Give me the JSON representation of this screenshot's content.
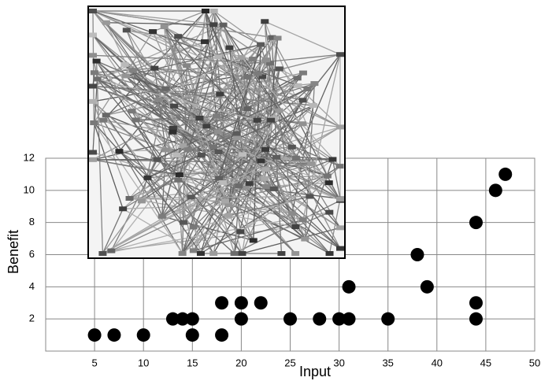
{
  "chart_data": {
    "type": "scatter",
    "x_label": "Input",
    "y_label": "Benefit",
    "x": [
      5,
      7,
      10,
      13,
      14,
      15,
      15,
      18,
      18,
      20,
      20,
      22,
      25,
      28,
      30,
      31,
      31,
      35,
      38,
      39,
      44,
      44,
      44,
      46,
      47
    ],
    "values": [
      1,
      1,
      1,
      2,
      2,
      2,
      1,
      1,
      3,
      3,
      2,
      3,
      2,
      2,
      2,
      2,
      4,
      2,
      6,
      4,
      2,
      3,
      8,
      10,
      11
    ],
    "color": "#000000",
    "xlim": [
      0,
      50
    ],
    "xticks": [
      5,
      10,
      15,
      20,
      25,
      30,
      35,
      40,
      45,
      50
    ],
    "ylim": [
      0,
      12
    ],
    "yticks": [
      2,
      4,
      6,
      8,
      10,
      12
    ],
    "grid": true
  }
}
